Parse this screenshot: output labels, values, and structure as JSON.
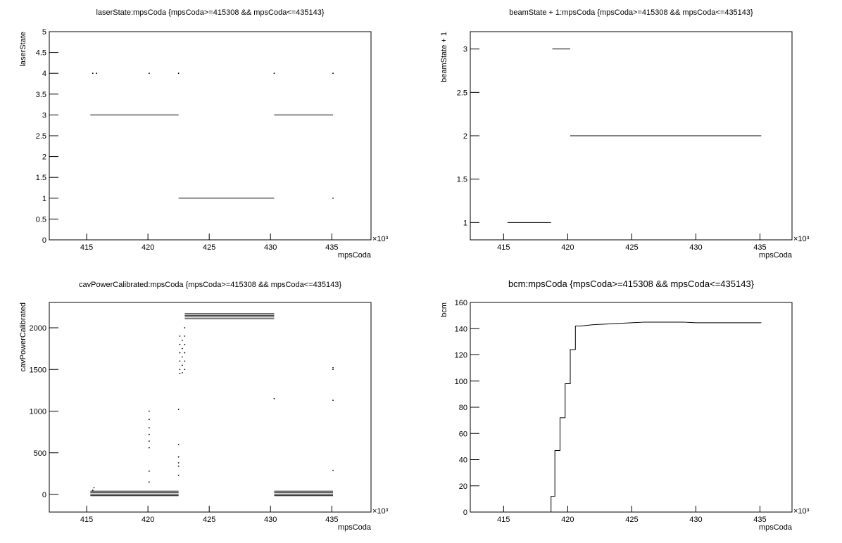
{
  "chart_data": [
    {
      "type": "scatter",
      "title": "laserState:mpsCoda {mpsCoda>=415308 && mpsCoda<=435143}",
      "x_label": "mpsCoda",
      "y_label": "laserState",
      "x_multiplier": "×10³",
      "xlim": [
        411.95,
        438.2
      ],
      "ylim": [
        0,
        5
      ],
      "xticks": [
        415,
        420,
        425,
        430,
        435
      ],
      "yticks": [
        0,
        0.5,
        1,
        1.5,
        2,
        2.5,
        3,
        3.5,
        4,
        4.5,
        5
      ],
      "series": [
        {
          "color": "#000000",
          "line": true,
          "x": [
            415.3,
            422.5,
            null,
            422.5,
            430.3,
            null,
            430.3,
            435.1
          ],
          "values": [
            3,
            3,
            null,
            1,
            1,
            null,
            3,
            3
          ]
        },
        {
          "color": "#000000",
          "line": false,
          "x": [
            415.5,
            415.8,
            420.1,
            422.5,
            430.3,
            435.1,
            435.1
          ],
          "values": [
            4,
            4,
            4,
            4,
            4,
            4,
            1
          ]
        }
      ]
    },
    {
      "type": "scatter",
      "title": "beamState + 1:mpsCoda {mpsCoda>=415308 && mpsCoda<=435143}",
      "x_label": "mpsCoda",
      "y_label": "beamState + 1",
      "x_multiplier": "×10³",
      "xlim": [
        412.4,
        437.5
      ],
      "ylim": [
        0.8,
        3.2
      ],
      "xticks": [
        415,
        420,
        425,
        430,
        435
      ],
      "yticks": [
        1,
        1.5,
        2,
        2.5,
        3
      ],
      "series": [
        {
          "color": "#000000",
          "line": true,
          "x": [
            415.3,
            418.7,
            null,
            418.8,
            420.2,
            null,
            420.2,
            435.1
          ],
          "values": [
            1,
            1,
            null,
            3,
            3,
            null,
            2,
            2
          ]
        }
      ]
    },
    {
      "type": "scatter",
      "title": "cavPowerCalibrated:mpsCoda {mpsCoda>=415308 && mpsCoda<=435143}",
      "x_label": "mpsCoda",
      "y_label": "cavPowerCalibrated",
      "x_multiplier": "×10³",
      "xlim": [
        411.95,
        438.2
      ],
      "ylim": [
        -211,
        2304
      ],
      "xticks": [
        415,
        420,
        425,
        430,
        435
      ],
      "yticks": [
        0,
        500,
        1000,
        1500,
        2000
      ],
      "series": [
        {
          "color": "#000000",
          "line": true,
          "x": [
            415.3,
            422.5,
            null,
            415.3,
            422.5,
            null,
            415.3,
            422.5,
            null,
            415.3,
            422.5,
            null,
            430.3,
            435.1,
            null,
            430.3,
            435.1,
            null,
            430.3,
            435.1,
            null,
            430.3,
            435.1,
            null,
            423,
            430.3,
            null,
            423,
            430.3,
            null,
            423,
            430.3,
            null,
            423,
            430.3
          ],
          "values": [
            40,
            40,
            null,
            20,
            20,
            null,
            0,
            0,
            null,
            -15,
            -15,
            null,
            40,
            40,
            null,
            20,
            20,
            null,
            0,
            0,
            null,
            -15,
            -15,
            null,
            2170,
            2170,
            null,
            2150,
            2150,
            null,
            2130,
            2130,
            null,
            2110,
            2110
          ]
        },
        {
          "color": "#000000",
          "line": false,
          "x": [
            415.5,
            415.6,
            420.1,
            420.1,
            420.1,
            420.1,
            420.1,
            420.1,
            420.1,
            420.1,
            422.5,
            422.5,
            422.5,
            422.5,
            422.5,
            422.5,
            422.6,
            422.6,
            422.6,
            422.6,
            422.6,
            422.6,
            422.8,
            422.8,
            422.8,
            422.8,
            422.8,
            423,
            423,
            423,
            423,
            423,
            423,
            430.3,
            435.1,
            435.1,
            435.1,
            435.1
          ],
          "values": [
            50,
            80,
            1000,
            900,
            800,
            720,
            640,
            560,
            280,
            150,
            1020,
            600,
            450,
            380,
            340,
            230,
            1900,
            1800,
            1700,
            1600,
            1500,
            1450,
            1850,
            1750,
            1650,
            1550,
            1460,
            2000,
            1900,
            1800,
            1700,
            1600,
            1500,
            1150,
            1520,
            1500,
            1130,
            290
          ]
        }
      ]
    },
    {
      "type": "scatter",
      "title": "bcm:mpsCoda {mpsCoda>=415308 && mpsCoda<=435143}",
      "x_label": "mpsCoda",
      "y_label": "bcm",
      "x_multiplier": "×10³",
      "xlim": [
        412.4,
        437.5
      ],
      "ylim": [
        0,
        160
      ],
      "xticks": [
        415,
        420,
        425,
        430,
        435
      ],
      "yticks": [
        0,
        20,
        40,
        60,
        80,
        100,
        120,
        140,
        160
      ],
      "series": [
        {
          "color": "#000000",
          "line": true,
          "x": [
            418.7,
            418.7,
            419.0,
            419.0,
            419.4,
            419.4,
            419.8,
            419.8,
            420.2,
            420.2,
            420.6,
            420.6,
            421,
            422,
            423,
            424,
            425,
            426,
            427,
            428,
            429,
            430,
            431,
            432,
            433,
            434,
            435.1
          ],
          "values": [
            0,
            12,
            12,
            47,
            47,
            72,
            72,
            98,
            98,
            124,
            124,
            142,
            142,
            143,
            143.5,
            144,
            144.5,
            145,
            145,
            145,
            145,
            144.5,
            144.5,
            144.5,
            144.5,
            144.5,
            144.5
          ]
        }
      ]
    }
  ]
}
